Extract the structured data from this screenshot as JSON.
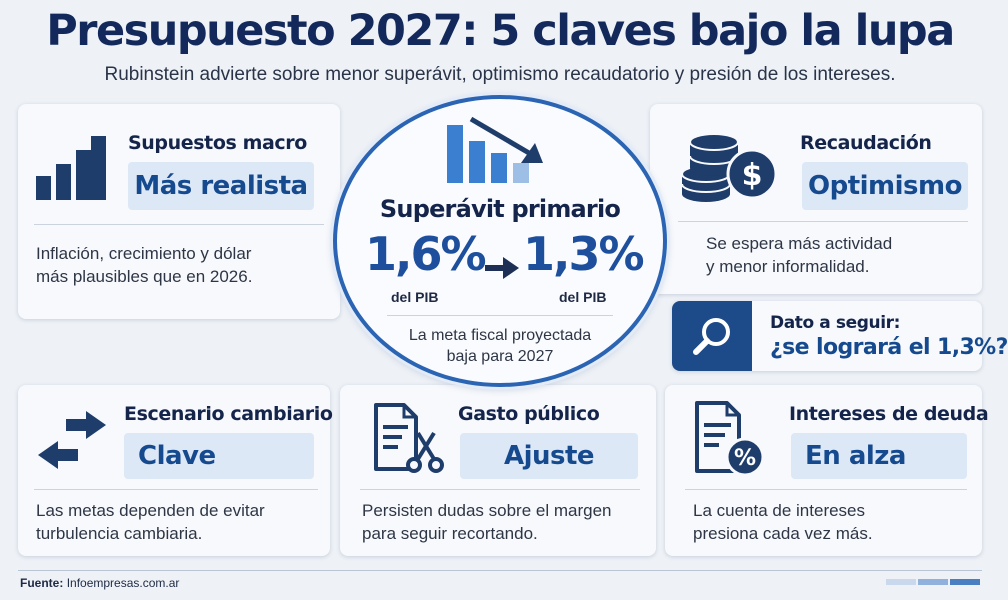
{
  "header": {
    "title": "Presupuesto 2027: 5 claves bajo la lupa",
    "subtitle": "Rubinstein advierte sobre menor superávit, optimismo recaudatorio y presión de los intereses."
  },
  "cards": {
    "supuestos": {
      "title": "Supuestos macro",
      "value": "Más realista",
      "description": [
        "Inflación, crecimiento y dólar",
        "más plausibles que en 2026."
      ],
      "icon": "bar-chart-icon"
    },
    "superavit": {
      "title": "Superávit primario",
      "from_value": "1,6%",
      "from_unit": "del PIB",
      "to_value": "1,3%",
      "to_unit": "del PIB",
      "description": [
        "La meta fiscal proyectada",
        "baja para 2027"
      ],
      "icon": "declining-bars-icon"
    },
    "recaudacion": {
      "title": "Recaudación",
      "value": "Optimismo",
      "description": [
        "Se espera más actividad",
        "y menor informalidad."
      ],
      "icon": "coins-dollar-icon"
    },
    "dato": {
      "label": "Dato a seguir:",
      "question": "¿se logrará el 1,3%?",
      "icon": "magnifier-icon"
    },
    "cambiario": {
      "title": "Escenario cambiario",
      "value": "Clave",
      "description": [
        "Las metas dependen de evitar",
        "turbulencia cambiaria."
      ],
      "icon": "exchange-arrows-icon"
    },
    "gasto": {
      "title": "Gasto público",
      "value": "Ajuste",
      "description": [
        "Persisten dudas sobre el margen",
        "para seguir recortando."
      ],
      "icon": "document-scissors-icon"
    },
    "intereses": {
      "title": "Intereses de deuda",
      "value": "En alza",
      "description": [
        "La cuenta de intereses",
        "presiona cada vez más."
      ],
      "icon": "document-percent-icon"
    }
  },
  "footer": {
    "label": "Fuente:",
    "source": "Infoempresas.com.ar"
  },
  "colors": {
    "navy": "#13295b",
    "accent_blue": "#2a64b3",
    "pill_bg": "#dde8f6",
    "icon_dark": "#1f3d6b"
  }
}
